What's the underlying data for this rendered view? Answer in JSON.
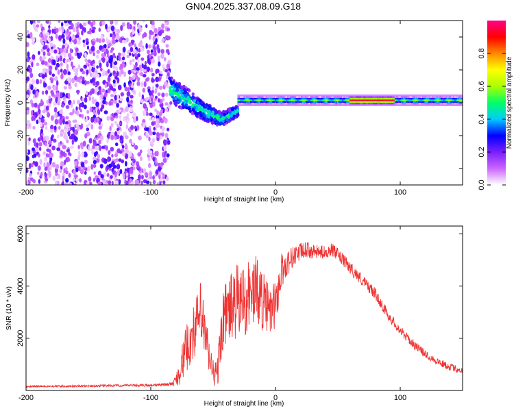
{
  "title": "GN04.2025.337.08.09.G18",
  "chart_data": [
    {
      "type": "heatmap",
      "title": "",
      "xlabel": "Height of straight line (km)",
      "ylabel": "Frequency (Hz)",
      "xlim": [
        -200,
        150
      ],
      "ylim": [
        -50,
        50
      ],
      "xticks": [
        -200,
        -100,
        0,
        100
      ],
      "yticks": [
        -40,
        -20,
        0,
        20,
        40
      ],
      "xtick_labels": [
        "-200",
        "-100",
        "0",
        "100"
      ],
      "ytick_labels": [
        "-40",
        "-20",
        "0",
        "20",
        "40"
      ],
      "colorbar": {
        "label": "Normalized spectral amplitude",
        "range": [
          0,
          1
        ],
        "ticks": [
          0.0,
          0.2,
          0.4,
          0.6,
          0.8
        ],
        "tick_labels": [
          "0.0",
          "0.2",
          "0.4",
          "0.6",
          "0.8"
        ],
        "colormap": [
          "#ffffff",
          "#cc66ff",
          "#7a1fff",
          "#0000ff",
          "#00ccff",
          "#00ff66",
          "#aaff00",
          "#ffff00",
          "#ff8800",
          "#ff0000",
          "#ff0088"
        ]
      },
      "regions": [
        {
          "name": "noise",
          "x_range": [
            -200,
            -85
          ],
          "freq_range": [
            -50,
            50
          ],
          "amplitude": "0.05-0.25"
        },
        {
          "name": "transition",
          "x_range": [
            -85,
            -30
          ],
          "freq_center": [
            8,
            2,
            -5,
            -10,
            -5
          ],
          "amplitude": "0.2-0.5"
        },
        {
          "name": "signal-line",
          "x_range": [
            -30,
            150
          ],
          "freq_center": 1.5,
          "peak_x_range": [
            60,
            95
          ],
          "peak_amplitude": 0.95
        }
      ]
    },
    {
      "type": "line",
      "title": "",
      "xlabel": "Height of straight line (km)",
      "ylabel": "SNR (10 * v/v)",
      "xlim": [
        -200,
        150
      ],
      "ylim": [
        0,
        6300
      ],
      "xticks": [
        -200,
        -100,
        0,
        100
      ],
      "yticks": [
        2000,
        4000,
        6000
      ],
      "xtick_labels": [
        "-200",
        "-100",
        "0",
        "100"
      ],
      "ytick_labels": [
        "2000",
        "4000",
        "6000"
      ],
      "series": [
        {
          "name": "SNR",
          "color": "#ee3333",
          "envelope_x": [
            -200,
            -150,
            -100,
            -82,
            -78,
            -72,
            -65,
            -60,
            -57,
            -52,
            -47,
            -42,
            -35,
            -30,
            -25,
            -20,
            -15,
            -10,
            -5,
            0,
            5,
            10,
            15,
            20,
            25,
            30,
            40,
            45,
            50,
            60,
            70,
            80,
            90,
            100,
            110,
            120,
            130,
            140,
            150
          ],
          "envelope_y": [
            150,
            170,
            200,
            250,
            600,
            1500,
            2300,
            3000,
            2200,
            1000,
            500,
            2800,
            3200,
            3400,
            3500,
            3700,
            3900,
            3400,
            3000,
            3300,
            4600,
            4900,
            5200,
            5300,
            5400,
            5300,
            5300,
            5400,
            5200,
            4700,
            4200,
            3700,
            2900,
            2300,
            1800,
            1400,
            1100,
            900,
            750
          ],
          "noise_amplitude": [
            40,
            40,
            50,
            60,
            500,
            900,
            1100,
            1200,
            1100,
            600,
            600,
            1200,
            1400,
            1500,
            1500,
            1400,
            1300,
            1200,
            1000,
            900,
            700,
            500,
            400,
            350,
            300,
            280,
            250,
            250,
            250,
            250,
            230,
            220,
            200,
            180,
            170,
            160,
            150,
            140,
            130
          ]
        }
      ]
    }
  ]
}
